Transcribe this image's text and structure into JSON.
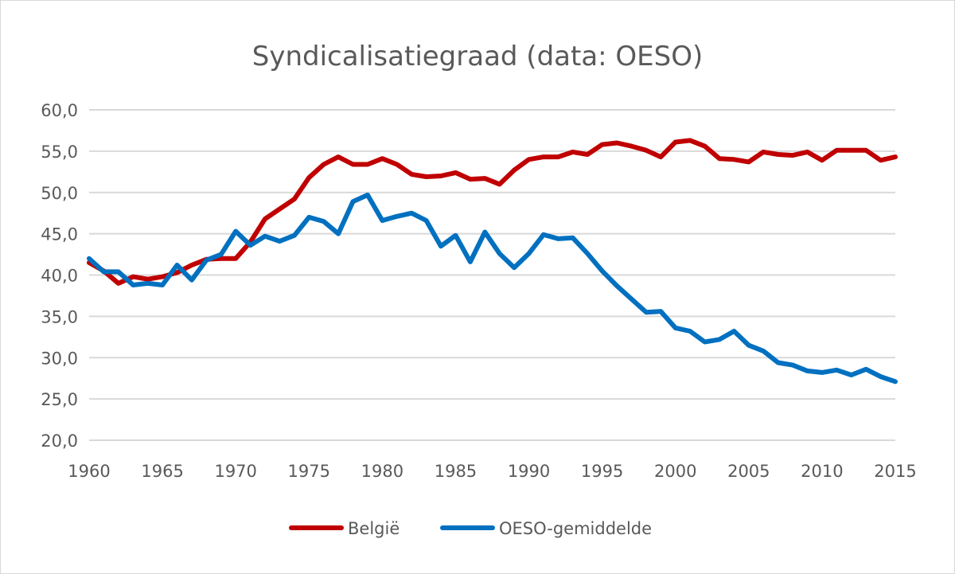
{
  "chart_data": {
    "type": "line",
    "title": "Syndicalisatiegraad (data: OESO)",
    "xlabel": "",
    "ylabel": "",
    "xlim": [
      1960,
      2015
    ],
    "ylim": [
      20,
      60
    ],
    "x_ticks": [
      "1960",
      "1965",
      "1970",
      "1975",
      "1980",
      "1985",
      "1990",
      "1995",
      "2000",
      "2005",
      "2010",
      "2015"
    ],
    "y_ticks": [
      "20,0",
      "25,0",
      "30,0",
      "35,0",
      "40,0",
      "45,0",
      "50,0",
      "55,0",
      "60,0"
    ],
    "grid": "horizontal",
    "legend_position": "bottom",
    "x": [
      1960,
      1961,
      1962,
      1963,
      1964,
      1965,
      1966,
      1967,
      1968,
      1969,
      1970,
      1971,
      1972,
      1973,
      1974,
      1975,
      1976,
      1977,
      1978,
      1979,
      1980,
      1981,
      1982,
      1983,
      1984,
      1985,
      1986,
      1987,
      1988,
      1989,
      1990,
      1991,
      1992,
      1993,
      1994,
      1995,
      1996,
      1997,
      1998,
      1999,
      2000,
      2001,
      2002,
      2003,
      2004,
      2005,
      2006,
      2007,
      2008,
      2009,
      2010,
      2011,
      2012,
      2013,
      2014,
      2015
    ],
    "series": [
      {
        "name": "België",
        "color": "#c00000",
        "values": [
          41.5,
          40.5,
          39.0,
          39.8,
          39.5,
          39.8,
          40.3,
          41.2,
          41.9,
          42.0,
          42.0,
          44.0,
          46.8,
          48.0,
          49.2,
          51.8,
          53.4,
          54.3,
          53.4,
          53.4,
          54.1,
          53.4,
          52.2,
          51.9,
          52.0,
          52.4,
          51.6,
          51.7,
          51.0,
          52.7,
          54.0,
          54.3,
          54.3,
          54.9,
          54.6,
          55.8,
          56.0,
          55.6,
          55.1,
          54.3,
          56.1,
          56.3,
          55.6,
          54.1,
          54.0,
          53.7,
          54.9,
          54.6,
          54.5,
          54.9,
          53.9,
          55.1,
          55.1,
          55.1,
          53.9,
          54.3
        ]
      },
      {
        "name": "OESO-gemiddelde",
        "color": "#0070c0",
        "values": [
          42.0,
          40.4,
          40.4,
          38.8,
          39.0,
          38.8,
          41.2,
          39.4,
          41.8,
          42.5,
          45.3,
          43.6,
          44.7,
          44.1,
          44.8,
          47.0,
          46.5,
          45.0,
          48.9,
          49.7,
          46.6,
          47.1,
          47.5,
          46.6,
          43.5,
          44.8,
          41.6,
          45.2,
          42.6,
          40.9,
          42.6,
          44.9,
          44.4,
          44.5,
          42.6,
          40.5,
          38.7,
          37.1,
          35.5,
          35.6,
          33.6,
          33.2,
          31.9,
          32.2,
          33.2,
          31.5,
          30.8,
          29.4,
          29.1,
          28.4,
          28.2,
          28.5,
          27.9,
          28.6,
          27.7,
          27.1
        ]
      }
    ]
  }
}
